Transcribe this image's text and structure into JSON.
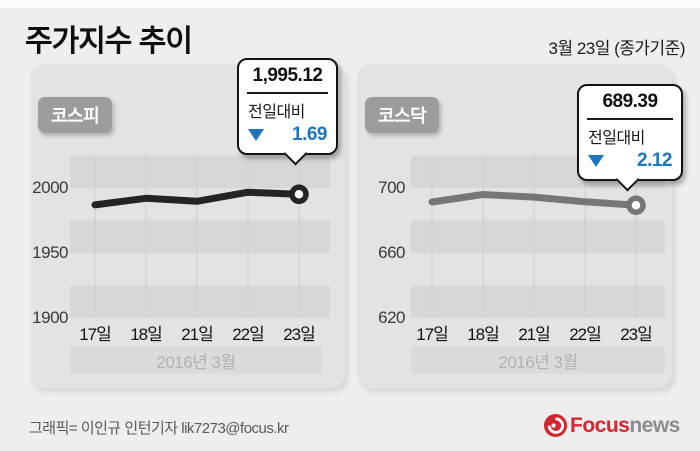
{
  "header": {
    "title": "주가지수 추이",
    "date_note": "3월 23일 (종가기준)"
  },
  "colors": {
    "accent_blue": "#1d76bd",
    "kospi_line": "#242424",
    "kosdaq_line": "#767676",
    "panel_bg": "#e3e3e4",
    "band_dark": "#d7d7d8",
    "badge_bg": "#9c9c9e",
    "logo_red": "#d6252e",
    "logo_gray": "#8a8d90"
  },
  "chart_data": [
    {
      "type": "line",
      "title": "코스피",
      "categories": [
        "17일",
        "18일",
        "21일",
        "22일",
        "23일"
      ],
      "values": [
        1987.0,
        1992.1,
        1989.8,
        1996.8,
        1995.12
      ],
      "ylim": [
        1900,
        2025
      ],
      "y_ticks": [
        "2000",
        "1950",
        "1900"
      ],
      "x_group_label": "2016년 3월",
      "line_color": "#242424",
      "grid": "horizontal-bands-and-vertical-lines",
      "legend_position": "none",
      "callout": {
        "value": "1,995.12",
        "label": "전일대비",
        "direction": "down",
        "change": "1.69"
      }
    },
    {
      "type": "line",
      "title": "코스닥",
      "categories": [
        "17일",
        "18일",
        "21일",
        "22일",
        "23일"
      ],
      "values": [
        691.4,
        696.0,
        694.4,
        691.5,
        689.39
      ],
      "ylim": [
        620,
        720
      ],
      "y_ticks": [
        "700",
        "660",
        "620"
      ],
      "x_group_label": "2016년 3월",
      "line_color": "#767676",
      "grid": "horizontal-bands-and-vertical-lines",
      "legend_position": "none",
      "callout": {
        "value": "689.39",
        "label": "전일대비",
        "direction": "down",
        "change": "2.12"
      }
    }
  ],
  "footer": {
    "credit": "그래픽= 이인규 인턴기자 lik7273@focus.kr",
    "logo": {
      "brand": "Focus",
      "suffix": "news",
      "icon": "focus-swirl-icon"
    }
  }
}
